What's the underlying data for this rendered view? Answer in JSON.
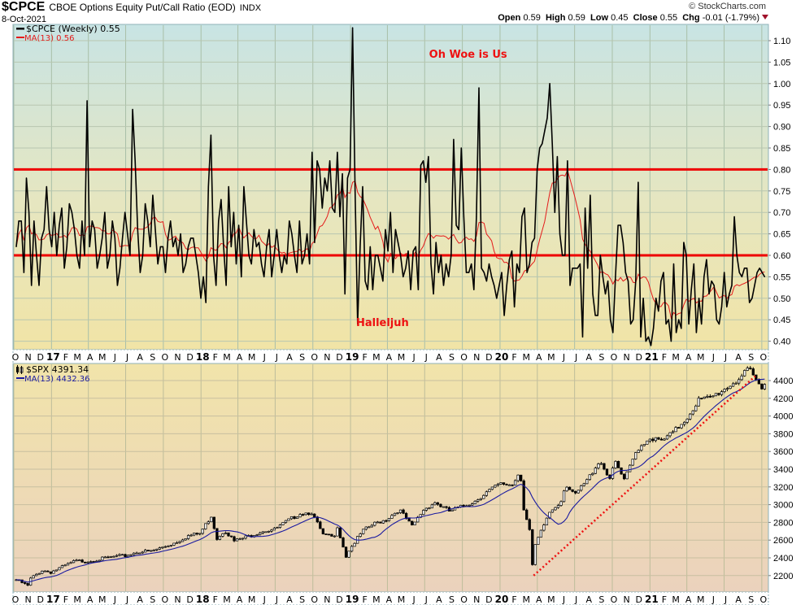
{
  "header": {
    "symbol": "$CPCE",
    "description": "CBOE Options Equity Put/Call Ratio (EOD)",
    "exchange": "INDX",
    "date": "8-Oct-2021",
    "copyright": "© StockCharts.com",
    "open_label": "Open",
    "open": "0.59",
    "high_label": "High",
    "high": "0.59",
    "low_label": "Low",
    "low": "0.45",
    "close_label": "Close",
    "close": "0.55",
    "chg_label": "Chg",
    "chg": "-0.01 (-1.79%)"
  },
  "colors": {
    "cpce": "#000000",
    "cpce_ma": "#e41a1a",
    "threshold": "#ee0000",
    "spx_ma": "#1a1aa0",
    "trendline": "#ee1111"
  },
  "chart_data": [
    {
      "type": "line",
      "title": "$CPCE (Weekly)",
      "legend": {
        "series_label": "$CPCE (Weekly) 0.55",
        "ma_label": "MA(13) 0.56",
        "placement": "top-left"
      },
      "x_range": [
        "2016-10-01",
        "2021-10-31"
      ],
      "series_start": "2016-10-07",
      "series_end": "2021-10-08",
      "ylim": [
        0.38,
        1.14
      ],
      "y_ticks": [
        "0.40",
        "0.45",
        "0.50",
        "0.55",
        "0.60",
        "0.65",
        "0.70",
        "0.75",
        "0.80",
        "0.85",
        "0.90",
        "0.95",
        "1.00",
        "1.05",
        "1.10"
      ],
      "ma_period": 13,
      "horizontal_lines": [
        0.8,
        0.6
      ],
      "annotations": [
        {
          "text": "Oh Woe is Us",
          "date": "2019-10-15",
          "value": 1.06
        },
        {
          "text": "Halleljuh",
          "date": "2019-03-20",
          "value": 0.435
        }
      ],
      "values": [
        0.62,
        0.68,
        0.68,
        0.56,
        0.78,
        0.7,
        0.53,
        0.68,
        0.6,
        0.53,
        0.64,
        0.66,
        0.76,
        0.66,
        0.62,
        0.7,
        0.6,
        0.67,
        0.71,
        0.57,
        0.62,
        0.72,
        0.7,
        0.66,
        0.6,
        0.57,
        0.68,
        0.6,
        0.96,
        0.62,
        0.68,
        0.66,
        0.57,
        0.6,
        0.64,
        0.7,
        0.57,
        0.6,
        0.68,
        0.64,
        0.53,
        0.57,
        0.64,
        0.7,
        0.65,
        0.6,
        0.94,
        0.82,
        0.66,
        0.56,
        0.6,
        0.72,
        0.68,
        0.62,
        0.74,
        0.66,
        0.58,
        0.62,
        0.62,
        0.56,
        0.64,
        0.68,
        0.62,
        0.64,
        0.6,
        0.65,
        0.56,
        0.58,
        0.62,
        0.64,
        0.64,
        0.6,
        0.56,
        0.5,
        0.55,
        0.49,
        0.76,
        0.88,
        0.6,
        0.53,
        0.68,
        0.73,
        0.62,
        0.53,
        0.76,
        0.62,
        0.7,
        0.58,
        0.67,
        0.55,
        0.76,
        0.68,
        0.6,
        0.58,
        0.66,
        0.62,
        0.63,
        0.58,
        0.55,
        0.62,
        0.66,
        0.55,
        0.6,
        0.66,
        0.6,
        0.56,
        0.6,
        0.58,
        0.68,
        0.65,
        0.6,
        0.56,
        0.68,
        0.58,
        0.6,
        0.65,
        0.58,
        0.84,
        0.63,
        0.82,
        0.8,
        0.71,
        0.78,
        0.75,
        0.82,
        0.71,
        0.7,
        0.84,
        0.69,
        0.79,
        0.51,
        0.78,
        0.8,
        1.13,
        0.75,
        0.44,
        0.62,
        0.76,
        0.54,
        0.52,
        0.62,
        0.52,
        0.6,
        0.6,
        0.57,
        0.54,
        0.66,
        0.61,
        0.7,
        0.56,
        0.66,
        0.63,
        0.6,
        0.55,
        0.57,
        0.61,
        0.52,
        0.61,
        0.62,
        0.52,
        0.81,
        0.82,
        0.77,
        0.83,
        0.58,
        0.51,
        0.63,
        0.56,
        0.6,
        0.53,
        0.58,
        0.55,
        0.6,
        0.87,
        0.67,
        0.66,
        0.85,
        0.69,
        0.56,
        0.56,
        0.58,
        0.52,
        0.69,
        0.99,
        0.57,
        0.56,
        0.54,
        0.58,
        0.55,
        0.53,
        0.5,
        0.53,
        0.56,
        0.46,
        0.53,
        0.59,
        0.61,
        0.48,
        0.58,
        0.56,
        0.69,
        0.71,
        0.56,
        0.58,
        0.63,
        0.64,
        0.8,
        0.85,
        0.86,
        0.89,
        0.92,
        1.0,
        0.86,
        0.7,
        0.83,
        0.65,
        0.6,
        0.6,
        0.82,
        0.53,
        0.57,
        0.57,
        0.57,
        0.58,
        0.41,
        0.71,
        0.57,
        0.74,
        0.51,
        0.46,
        0.46,
        0.6,
        0.55,
        0.51,
        0.54,
        0.45,
        0.42,
        0.55,
        0.67,
        0.67,
        0.63,
        0.56,
        0.54,
        0.44,
        0.45,
        0.54,
        0.77,
        0.41,
        0.5,
        0.4,
        0.41,
        0.39,
        0.43,
        0.5,
        0.47,
        0.54,
        0.56,
        0.44,
        0.45,
        0.4,
        0.58,
        0.42,
        0.45,
        0.43,
        0.63,
        0.6,
        0.44,
        0.52,
        0.58,
        0.42,
        0.5,
        0.44,
        0.55,
        0.59,
        0.51,
        0.54,
        0.53,
        0.45,
        0.44,
        0.48,
        0.56,
        0.48,
        0.51,
        0.53,
        0.69,
        0.6,
        0.56,
        0.55,
        0.57,
        0.57,
        0.49,
        0.5,
        0.53,
        0.56,
        0.57,
        0.56,
        0.55
      ]
    },
    {
      "type": "candlestick",
      "title": "$SPX",
      "legend": {
        "series_label": "$SPX 4391.34",
        "ma_label": "MA(13) 4432.36",
        "placement": "top-left"
      },
      "ylim": [
        2010,
        4590
      ],
      "y_ticks": [
        "2200",
        "2400",
        "2600",
        "2800",
        "3000",
        "3200",
        "3400",
        "3600",
        "3800",
        "4000",
        "4200",
        "4400"
      ],
      "ma_period": 13,
      "close_anchors": [
        [
          "2016-10-07",
          2153
        ],
        [
          "2016-11-04",
          2085
        ],
        [
          "2016-11-11",
          2164
        ],
        [
          "2016-12-09",
          2259
        ],
        [
          "2016-12-30",
          2239
        ],
        [
          "2017-01-27",
          2295
        ],
        [
          "2017-02-28",
          2364
        ],
        [
          "2017-03-31",
          2363
        ],
        [
          "2017-04-28",
          2384
        ],
        [
          "2017-05-31",
          2412
        ],
        [
          "2017-06-30",
          2423
        ],
        [
          "2017-07-31",
          2470
        ],
        [
          "2017-08-31",
          2472
        ],
        [
          "2017-09-29",
          2519
        ],
        [
          "2017-10-31",
          2575
        ],
        [
          "2017-11-30",
          2648
        ],
        [
          "2017-12-29",
          2674
        ],
        [
          "2018-01-26",
          2873
        ],
        [
          "2018-02-09",
          2620
        ],
        [
          "2018-02-28",
          2714
        ],
        [
          "2018-03-23",
          2588
        ],
        [
          "2018-04-30",
          2648
        ],
        [
          "2018-05-31",
          2705
        ],
        [
          "2018-06-29",
          2718
        ],
        [
          "2018-07-31",
          2816
        ],
        [
          "2018-08-31",
          2902
        ],
        [
          "2018-09-28",
          2914
        ],
        [
          "2018-10-26",
          2658
        ],
        [
          "2018-11-23",
          2633
        ],
        [
          "2018-11-30",
          2760
        ],
        [
          "2018-12-21",
          2417
        ],
        [
          "2018-12-28",
          2486
        ],
        [
          "2019-01-31",
          2704
        ],
        [
          "2019-02-28",
          2784
        ],
        [
          "2019-03-29",
          2834
        ],
        [
          "2019-04-30",
          2946
        ],
        [
          "2019-05-31",
          2752
        ],
        [
          "2019-06-28",
          2942
        ],
        [
          "2019-07-26",
          3026
        ],
        [
          "2019-08-30",
          2926
        ],
        [
          "2019-09-30",
          2977
        ],
        [
          "2019-10-31",
          3038
        ],
        [
          "2019-11-29",
          3141
        ],
        [
          "2019-12-31",
          3231
        ],
        [
          "2020-01-31",
          3226
        ],
        [
          "2020-02-19",
          3386
        ],
        [
          "2020-02-28",
          2954
        ],
        [
          "2020-03-13",
          2711
        ],
        [
          "2020-03-20",
          2305
        ],
        [
          "2020-03-27",
          2541
        ],
        [
          "2020-04-30",
          2912
        ],
        [
          "2020-05-29",
          3044
        ],
        [
          "2020-06-08",
          3232
        ],
        [
          "2020-06-30",
          3100
        ],
        [
          "2020-07-31",
          3271
        ],
        [
          "2020-08-31",
          3500
        ],
        [
          "2020-09-25",
          3298
        ],
        [
          "2020-10-09",
          3477
        ],
        [
          "2020-10-30",
          3270
        ],
        [
          "2020-11-30",
          3622
        ],
        [
          "2020-12-31",
          3756
        ],
        [
          "2021-01-29",
          3714
        ],
        [
          "2021-02-26",
          3811
        ],
        [
          "2021-03-31",
          3973
        ],
        [
          "2021-04-30",
          4181
        ],
        [
          "2021-05-28",
          4204
        ],
        [
          "2021-06-30",
          4298
        ],
        [
          "2021-07-30",
          4395
        ],
        [
          "2021-08-31",
          4523
        ],
        [
          "2021-09-30",
          4308
        ],
        [
          "2021-10-08",
          4391
        ]
      ],
      "trendline": {
        "style": "dotted",
        "from": [
          "2020-03-23",
          2200
        ],
        "to": [
          "2021-09-15",
          4450
        ]
      }
    }
  ],
  "x_tick_labels": [
    "O",
    "N",
    "D",
    "17",
    "F",
    "M",
    "A",
    "M",
    "J",
    "J",
    "A",
    "S",
    "O",
    "N",
    "D",
    "18",
    "F",
    "M",
    "A",
    "M",
    "J",
    "J",
    "A",
    "S",
    "O",
    "N",
    "D",
    "19",
    "F",
    "M",
    "A",
    "M",
    "J",
    "J",
    "A",
    "S",
    "O",
    "N",
    "D",
    "20",
    "F",
    "M",
    "A",
    "M",
    "J",
    "J",
    "A",
    "S",
    "O",
    "N",
    "D",
    "21",
    "F",
    "M",
    "A",
    "M",
    "J",
    "J",
    "A",
    "S",
    "O"
  ]
}
